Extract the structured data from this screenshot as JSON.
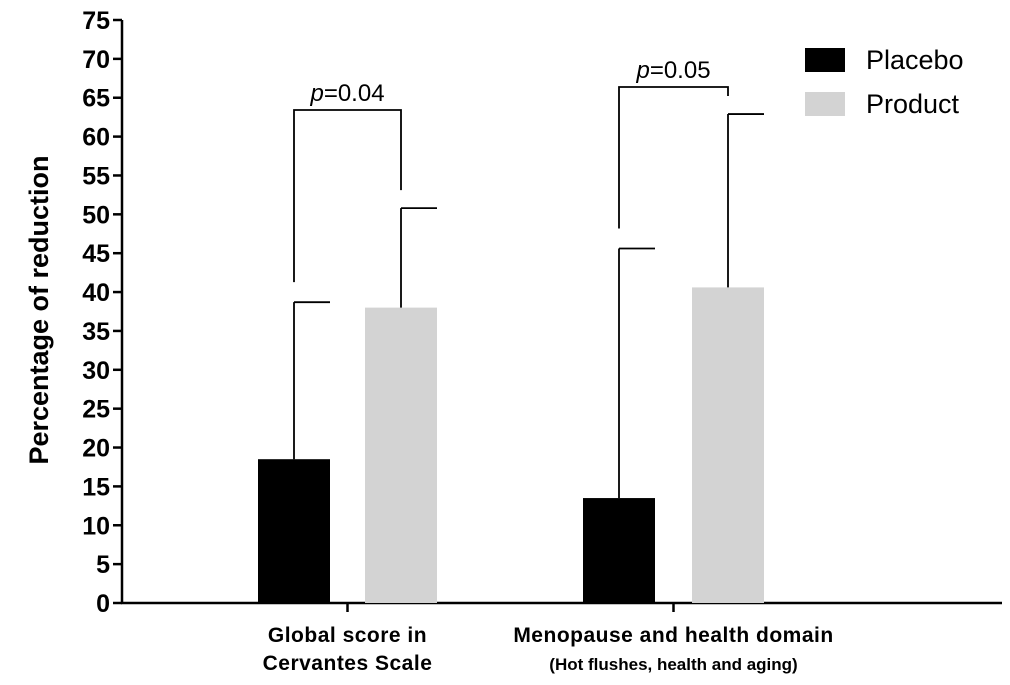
{
  "chart_data": {
    "type": "bar",
    "ylabel": "Percentage of reduction",
    "xlabel": "",
    "ylim": [
      0,
      75
    ],
    "ytick_step": 5,
    "grid": false,
    "legend_position": "top-right",
    "categories": [
      {
        "line1": "Global score in",
        "line2": "Cervantes Scale"
      },
      {
        "line1": "Menopause and health domain",
        "line2": "(Hot flushes, health and aging)"
      }
    ],
    "series": [
      {
        "name": "Placebo",
        "color": "#000000",
        "values": [
          18.5,
          13.5
        ],
        "error_upper": [
          38.7,
          45.6
        ]
      },
      {
        "name": "Product",
        "color": "#d3d3d3",
        "values": [
          38.0,
          40.6
        ],
        "error_upper": [
          50.8,
          62.9
        ]
      }
    ],
    "significance": [
      {
        "italic": "p",
        "rest": "=0.04"
      },
      {
        "italic": "p",
        "rest": "=0.05"
      }
    ]
  }
}
